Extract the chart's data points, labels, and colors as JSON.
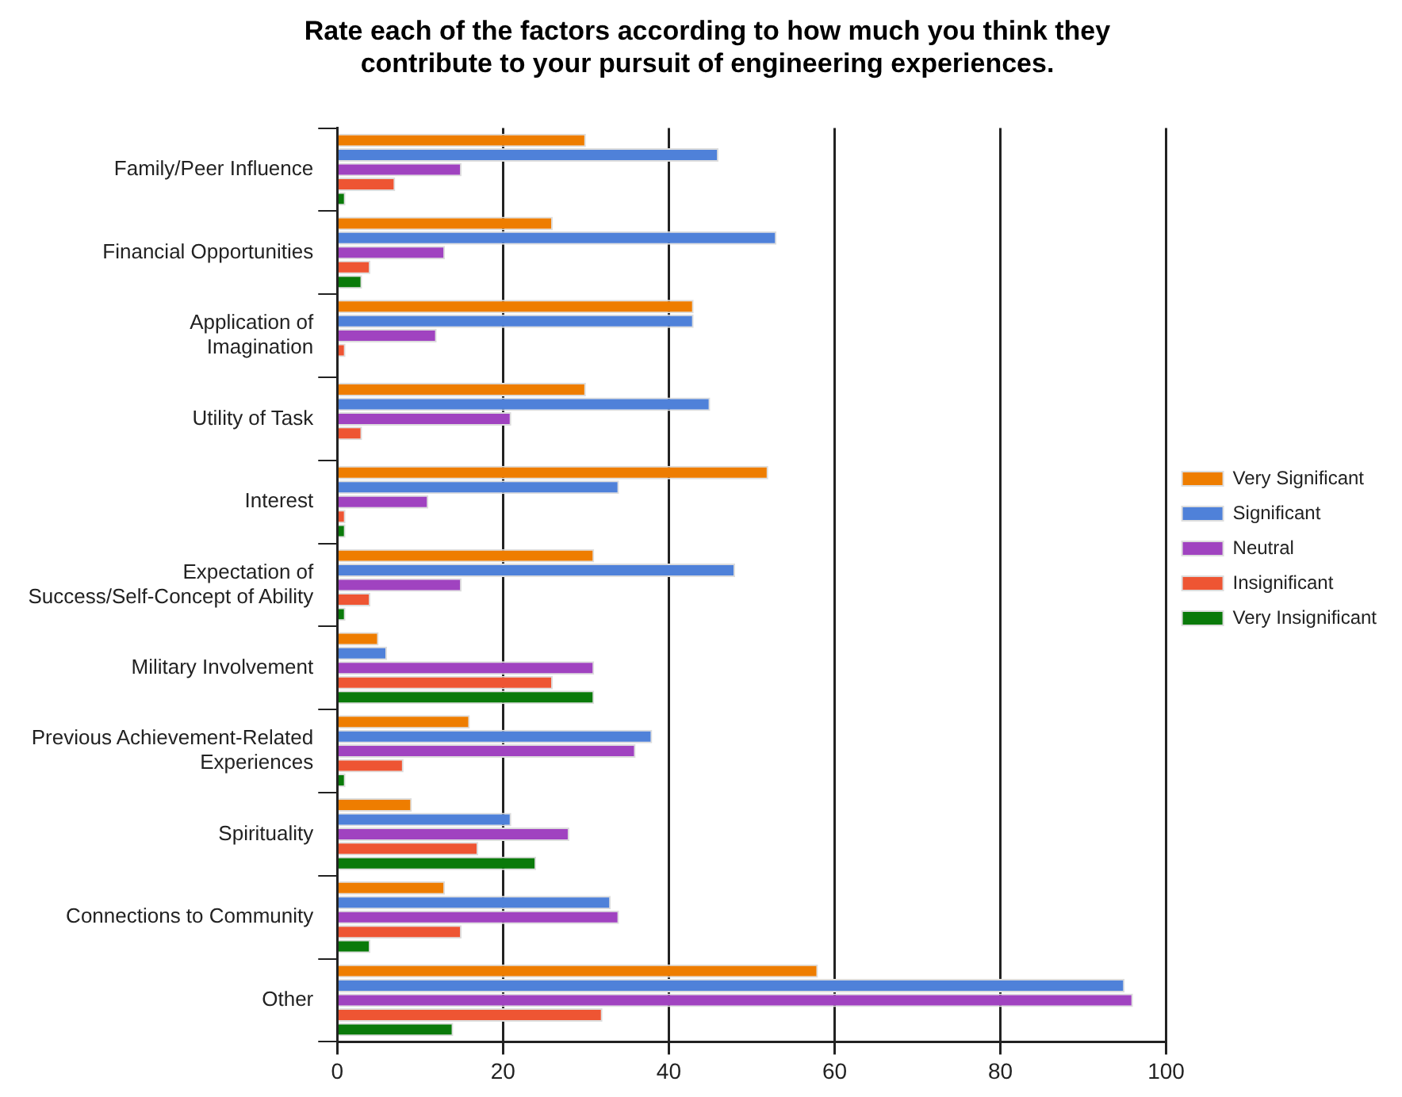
{
  "chart_data": {
    "type": "bar",
    "orientation": "horizontal",
    "title": "Rate each of the factors according to how much you think they\ncontribute to your pursuit of engineering experiences.",
    "categories": [
      "Family/Peer Influence",
      "Financial Opportunities",
      "Application of\nImagination",
      "Utility of Task",
      "Interest",
      "Expectation of\nSuccess/Self-Concept of Ability",
      "Military Involvement",
      "Previous Achievement-Related\nExperiences",
      "Spirituality",
      "Connections to Community",
      "Other"
    ],
    "series": [
      {
        "name": "Very Significant",
        "color": "#ee7d00",
        "values": [
          30,
          26,
          43,
          30,
          52,
          31,
          5,
          16,
          9,
          13,
          58
        ]
      },
      {
        "name": "Significant",
        "color": "#4f81d9",
        "values": [
          46,
          53,
          43,
          45,
          34,
          48,
          6,
          38,
          21,
          33,
          95
        ]
      },
      {
        "name": "Neutral",
        "color": "#a043c0",
        "values": [
          15,
          13,
          12,
          21,
          11,
          15,
          31,
          36,
          28,
          34,
          96
        ]
      },
      {
        "name": "Insignificant",
        "color": "#ee5533",
        "values": [
          7,
          4,
          1,
          3,
          1,
          4,
          26,
          8,
          17,
          15,
          32
        ]
      },
      {
        "name": "Very Insignificant",
        "color": "#0a7a0a",
        "values": [
          1,
          3,
          0,
          0,
          1,
          1,
          31,
          1,
          24,
          4,
          14
        ]
      }
    ],
    "xlim": [
      0,
      100
    ],
    "xticks": [
      0,
      20,
      40,
      60,
      80,
      100
    ],
    "grid": "x",
    "legend": "right"
  }
}
